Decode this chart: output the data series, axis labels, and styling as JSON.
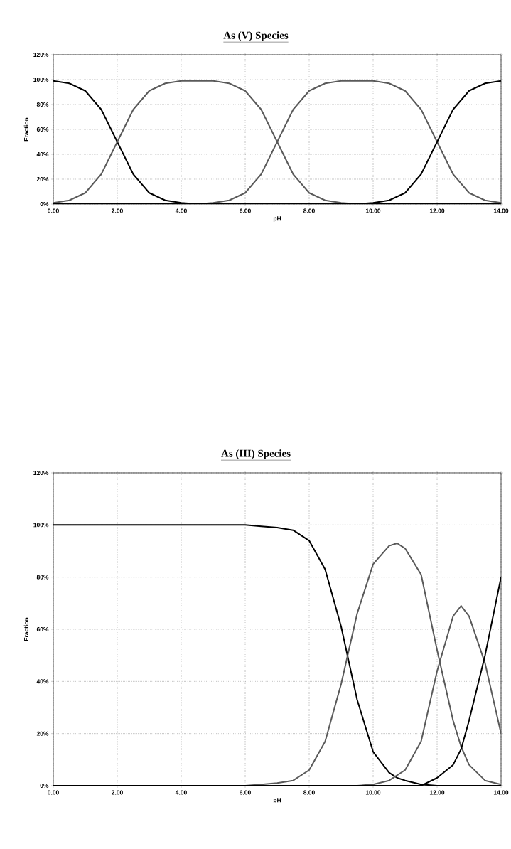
{
  "chart_data": [
    {
      "type": "line",
      "title": "As (V) Species",
      "xlabel": "pH",
      "ylabel": "Fraction",
      "xlim": [
        0,
        14
      ],
      "ylim": [
        0,
        120
      ],
      "xticks": [
        {
          "value": 0,
          "label": "0.00"
        },
        {
          "value": 2,
          "label": "2.00"
        },
        {
          "value": 4,
          "label": "4.00"
        },
        {
          "value": 6,
          "label": "6.00"
        },
        {
          "value": 8,
          "label": "8.00"
        },
        {
          "value": 10,
          "label": "10.00"
        },
        {
          "value": 12,
          "label": "12.00"
        },
        {
          "value": 14,
          "label": "14.00"
        }
      ],
      "yticks": [
        {
          "value": 0,
          "label": "0%"
        },
        {
          "value": 20,
          "label": "20%"
        },
        {
          "value": 40,
          "label": "40%"
        },
        {
          "value": 60,
          "label": "60%"
        },
        {
          "value": 80,
          "label": "80%"
        },
        {
          "value": 100,
          "label": "100%"
        },
        {
          "value": 120,
          "label": "120%"
        }
      ],
      "grid": true,
      "marker": "none",
      "line_style": "solid",
      "x": [
        0,
        0.5,
        1,
        1.5,
        2,
        2.5,
        3,
        3.5,
        4,
        4.5,
        5,
        5.5,
        6,
        6.5,
        7,
        7.5,
        8,
        8.5,
        9,
        9.5,
        10,
        10.5,
        11,
        11.5,
        12,
        12.5,
        13,
        13.5,
        14
      ],
      "series": [
        {
          "color": "#000000",
          "values": [
            99,
            97,
            91,
            76,
            50,
            24,
            9,
            3,
            1,
            0,
            0,
            0,
            0,
            0,
            0,
            0,
            0,
            0,
            0,
            0,
            0,
            0,
            0,
            0,
            0,
            0,
            0,
            0,
            0
          ]
        },
        {
          "color": "#5a5a5a",
          "values": [
            1,
            3,
            9,
            24,
            50,
            76,
            91,
            97,
            99,
            99,
            99,
            97,
            91,
            76,
            50,
            24,
            9,
            3,
            1,
            0,
            null,
            null,
            null,
            null,
            null,
            null,
            null,
            null,
            null
          ]
        },
        {
          "color": "#5a5a5a",
          "values": [
            null,
            null,
            null,
            null,
            null,
            null,
            null,
            null,
            null,
            0,
            1,
            3,
            9,
            24,
            50,
            76,
            91,
            97,
            99,
            99,
            99,
            97,
            91,
            76,
            50,
            24,
            9,
            3,
            1
          ]
        },
        {
          "color": "#000000",
          "values": [
            0,
            0,
            0,
            0,
            0,
            0,
            0,
            0,
            0,
            0,
            0,
            0,
            0,
            0,
            0,
            0,
            0,
            0,
            0,
            0,
            1,
            3,
            9,
            24,
            50,
            76,
            91,
            97,
            99
          ]
        }
      ]
    },
    {
      "type": "line",
      "title": "As (III) Species",
      "xlabel": "pH",
      "ylabel": "Fraction",
      "xlim": [
        0,
        14
      ],
      "ylim": [
        0,
        120
      ],
      "xticks": [
        {
          "value": 0,
          "label": "0.00"
        },
        {
          "value": 2,
          "label": "2.00"
        },
        {
          "value": 4,
          "label": "4.00"
        },
        {
          "value": 6,
          "label": "6.00"
        },
        {
          "value": 8,
          "label": "8.00"
        },
        {
          "value": 10,
          "label": "10.00"
        },
        {
          "value": 12,
          "label": "12.00"
        },
        {
          "value": 14,
          "label": "14.00"
        }
      ],
      "yticks": [
        {
          "value": 0,
          "label": "0%"
        },
        {
          "value": 20,
          "label": "20%"
        },
        {
          "value": 40,
          "label": "40%"
        },
        {
          "value": 60,
          "label": "60%"
        },
        {
          "value": 80,
          "label": "80%"
        },
        {
          "value": 100,
          "label": "100%"
        },
        {
          "value": 120,
          "label": "120%"
        }
      ],
      "grid": true,
      "marker": "none",
      "line_style": "solid",
      "x": [
        0,
        0.5,
        1,
        1.5,
        2,
        2.5,
        3,
        3.5,
        4,
        4.5,
        5,
        5.5,
        6,
        6.5,
        7,
        7.5,
        8,
        8.5,
        9,
        9.5,
        10,
        10.5,
        10.75,
        11,
        11.5,
        12,
        12.5,
        12.75,
        13,
        13.5,
        14
      ],
      "series": [
        {
          "color": "#000000",
          "values": [
            100,
            100,
            100,
            100,
            100,
            100,
            100,
            100,
            100,
            100,
            100,
            100,
            100,
            99.5,
            99,
            98,
            94,
            83,
            61,
            33,
            13,
            5,
            3,
            2,
            0.5,
            0,
            0,
            0,
            0,
            0,
            0
          ]
        },
        {
          "color": "#5a5a5a",
          "values": [
            0,
            0,
            0,
            0,
            0,
            0,
            0,
            0,
            0,
            0,
            0,
            0,
            0,
            0.5,
            1,
            2,
            6,
            17,
            39,
            66,
            85,
            92,
            93,
            91,
            81,
            52,
            25,
            15,
            8,
            2,
            0.5
          ]
        },
        {
          "color": "#5a5a5a",
          "values": [
            0,
            0,
            0,
            0,
            0,
            0,
            0,
            0,
            0,
            0,
            0,
            0,
            0,
            0,
            0,
            0,
            0,
            0,
            0,
            0,
            0.5,
            2,
            4,
            6,
            17,
            44,
            65,
            69,
            65,
            47,
            20
          ]
        },
        {
          "color": "#000000",
          "values": [
            0,
            0,
            0,
            0,
            0,
            0,
            0,
            0,
            0,
            0,
            0,
            0,
            0,
            0,
            0,
            0,
            0,
            0,
            0,
            0,
            0,
            0,
            0,
            0,
            0,
            3,
            8,
            14,
            25,
            50,
            80
          ]
        }
      ]
    }
  ]
}
